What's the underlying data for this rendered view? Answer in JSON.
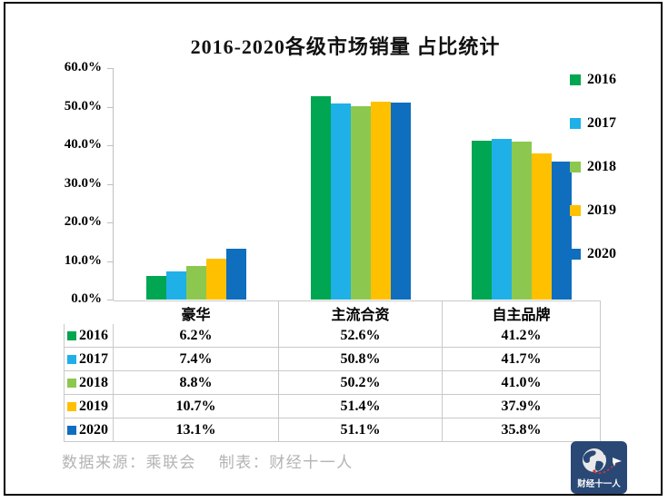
{
  "title": "2016-2020各级市场销量 占比统计",
  "chart_data": {
    "type": "bar",
    "title": "2016-2020各级市场销量 占比统计",
    "categories": [
      "豪华",
      "主流合资",
      "自主品牌"
    ],
    "series": [
      {
        "name": "2016",
        "color": "#00a651",
        "values": [
          6.2,
          52.6,
          41.2
        ]
      },
      {
        "name": "2017",
        "color": "#1fb0e8",
        "values": [
          7.4,
          50.8,
          41.7
        ]
      },
      {
        "name": "2018",
        "color": "#8cc850",
        "values": [
          8.8,
          50.2,
          41.0
        ]
      },
      {
        "name": "2019",
        "color": "#ffc000",
        "values": [
          10.7,
          51.4,
          37.9
        ]
      },
      {
        "name": "2020",
        "color": "#0f6ebe",
        "values": [
          13.1,
          51.1,
          35.8
        ]
      }
    ],
    "ylim": [
      0,
      60
    ],
    "ytick_step": 10,
    "ytick_labels": [
      "0.0%",
      "10.0%",
      "20.0%",
      "30.0%",
      "40.0%",
      "50.0%",
      "60.0%"
    ],
    "value_suffix": "%",
    "grid": false,
    "legend_position": "right",
    "data_table_shown": true
  },
  "footer": {
    "source_note": "数据来源：乘联会　 制表：财经十一人"
  },
  "logo": {
    "name": "财经十一人",
    "bg_color": "#2a4875",
    "accent_red": "#d03a3a"
  }
}
